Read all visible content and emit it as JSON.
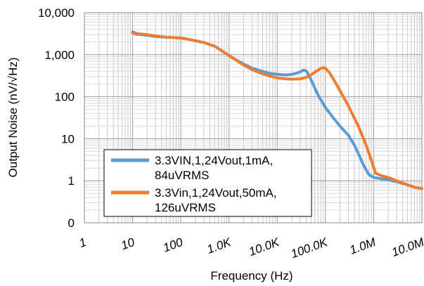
{
  "chart_data": {
    "type": "line",
    "xlabel": "Frequency (Hz)",
    "ylabel": "Output Noise (nV/√Hz)",
    "x_scale": "log",
    "y_scale": "log",
    "xlim": [
      1,
      10000000
    ],
    "ylim": [
      0.1,
      10000
    ],
    "grid": true,
    "legend_position": "bottom-left",
    "x_ticks": [
      {
        "value": 1,
        "label": "1"
      },
      {
        "value": 10,
        "label": "10"
      },
      {
        "value": 100,
        "label": "100"
      },
      {
        "value": 1000,
        "label": "1.0K"
      },
      {
        "value": 10000,
        "label": "10.0K"
      },
      {
        "value": 100000,
        "label": "100.0K"
      },
      {
        "value": 1000000,
        "label": "1.0M"
      },
      {
        "value": 10000000,
        "label": "10.0M"
      }
    ],
    "y_ticks": [
      {
        "value": 0.1,
        "label": "0"
      },
      {
        "value": 1,
        "label": "1"
      },
      {
        "value": 10,
        "label": "10"
      },
      {
        "value": 100,
        "label": "100"
      },
      {
        "value": 1000,
        "label": "1,000"
      },
      {
        "value": 10000,
        "label": "10,000"
      }
    ],
    "series": [
      {
        "name_lines": [
          "3.3VIN,1,24Vout,1mA,",
          "84uVRMS"
        ],
        "color": "#5B9BD5",
        "points": [
          [
            10,
            3500
          ],
          [
            12,
            3200
          ],
          [
            15,
            3000
          ],
          [
            20,
            2900
          ],
          [
            30,
            2700
          ],
          [
            50,
            2600
          ],
          [
            100,
            2500
          ],
          [
            150,
            2300
          ],
          [
            200,
            2150
          ],
          [
            300,
            1950
          ],
          [
            500,
            1600
          ],
          [
            700,
            1250
          ],
          [
            1000,
            950
          ],
          [
            1500,
            720
          ],
          [
            2000,
            600
          ],
          [
            3000,
            480
          ],
          [
            5000,
            400
          ],
          [
            7000,
            360
          ],
          [
            10000,
            340
          ],
          [
            15000,
            330
          ],
          [
            20000,
            340
          ],
          [
            25000,
            360
          ],
          [
            30000,
            390
          ],
          [
            35000,
            430
          ],
          [
            40000,
            410
          ],
          [
            45000,
            330
          ],
          [
            55000,
            200
          ],
          [
            70000,
            110
          ],
          [
            100000,
            55
          ],
          [
            150000,
            30
          ],
          [
            200000,
            20
          ],
          [
            300000,
            12
          ],
          [
            400000,
            7
          ],
          [
            500000,
            4
          ],
          [
            600000,
            2.5
          ],
          [
            700000,
            1.8
          ],
          [
            800000,
            1.4
          ],
          [
            1000000,
            1.2
          ],
          [
            1500000,
            1.1
          ],
          [
            2000000,
            1.05
          ],
          [
            3000000,
            0.95
          ],
          [
            5000000,
            0.8
          ],
          [
            7000000,
            0.7
          ],
          [
            10000000,
            0.65
          ]
        ]
      },
      {
        "name_lines": [
          "3.3Vin,1,24Vout,50mA,",
          "126uVRMS"
        ],
        "color": "#ED7D31",
        "points": [
          [
            10,
            3300
          ],
          [
            12,
            3000
          ],
          [
            15,
            3100
          ],
          [
            20,
            3000
          ],
          [
            30,
            2800
          ],
          [
            50,
            2600
          ],
          [
            100,
            2500
          ],
          [
            150,
            2300
          ],
          [
            200,
            2150
          ],
          [
            300,
            1950
          ],
          [
            500,
            1600
          ],
          [
            700,
            1250
          ],
          [
            1000,
            950
          ],
          [
            1500,
            700
          ],
          [
            2000,
            570
          ],
          [
            3000,
            440
          ],
          [
            5000,
            350
          ],
          [
            7000,
            310
          ],
          [
            10000,
            280
          ],
          [
            15000,
            265
          ],
          [
            20000,
            260
          ],
          [
            30000,
            265
          ],
          [
            40000,
            290
          ],
          [
            50000,
            330
          ],
          [
            60000,
            380
          ],
          [
            70000,
            430
          ],
          [
            80000,
            470
          ],
          [
            90000,
            490
          ],
          [
            100000,
            470
          ],
          [
            120000,
            380
          ],
          [
            150000,
            250
          ],
          [
            200000,
            140
          ],
          [
            300000,
            60
          ],
          [
            500000,
            18
          ],
          [
            700000,
            7
          ],
          [
            900000,
            3
          ],
          [
            1100000,
            1.5
          ],
          [
            1500000,
            1.3
          ],
          [
            2000000,
            1.2
          ],
          [
            3000000,
            1.0
          ],
          [
            5000000,
            0.8
          ],
          [
            7000000,
            0.7
          ],
          [
            10000000,
            0.65
          ]
        ]
      }
    ]
  }
}
